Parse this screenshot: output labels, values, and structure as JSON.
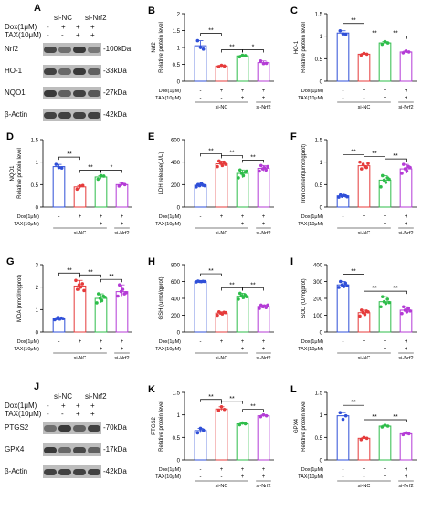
{
  "panel_letters": [
    "A",
    "B",
    "C",
    "D",
    "E",
    "F",
    "G",
    "H",
    "I",
    "J",
    "K",
    "L"
  ],
  "colors": {
    "siNC_ctrl": "#2f4fd8",
    "siNC_dox": "#e53b3b",
    "siNC_tax": "#2ebd4a",
    "siNrf2_tax": "#b43bd6"
  },
  "blots": [
    {
      "letter": "A",
      "treatments": [
        {
          "label": "Dox(1μM)",
          "signs": [
            "-",
            "+",
            "+",
            "+"
          ]
        },
        {
          "label": "TAX(10μM)",
          "signs": [
            "-",
            "-",
            "+",
            "+"
          ]
        }
      ],
      "groups": [
        {
          "label": "si-NC"
        },
        {
          "label": "si-Nrf2"
        }
      ],
      "rows": [
        {
          "name": "Nrf2",
          "kda": "-100kDa",
          "level": [
            0.75,
            0.5,
            0.85,
            0.45
          ]
        },
        {
          "name": "HO-1",
          "kda": "-33kDa",
          "level": [
            0.8,
            0.55,
            0.85,
            0.6
          ]
        },
        {
          "name": "NQO1",
          "kda": "-27kDa",
          "level": [
            0.85,
            0.6,
            0.8,
            0.65
          ]
        },
        {
          "name": "β-Actin",
          "kda": "-42kDa",
          "level": [
            0.8,
            0.8,
            0.8,
            0.8
          ]
        }
      ]
    },
    {
      "letter": "J",
      "treatments": [
        {
          "label": "Dox(1μM)",
          "signs": [
            "-",
            "+",
            "+",
            "+"
          ]
        },
        {
          "label": "TAX(10μM)",
          "signs": [
            "-",
            "-",
            "+",
            "+"
          ]
        }
      ],
      "groups": [
        {
          "label": "si-NC"
        },
        {
          "label": "si-Nrf2"
        }
      ],
      "rows": [
        {
          "name": "PTGS2",
          "kda": "-70kDa",
          "level": [
            0.5,
            0.85,
            0.6,
            0.8
          ]
        },
        {
          "name": "GPX4",
          "kda": "-17kDa",
          "level": [
            0.85,
            0.55,
            0.75,
            0.6
          ]
        },
        {
          "name": "β-Actin",
          "kda": "-42kDa",
          "level": [
            0.8,
            0.8,
            0.8,
            0.8
          ]
        }
      ]
    }
  ],
  "chart_data": [
    {
      "letter": "B",
      "type": "bar",
      "ylabel": "Nrf2\nRelative protein level",
      "ylim": [
        0,
        2.0
      ],
      "yticks": [
        0,
        0.5,
        1.0,
        1.5,
        2.0
      ],
      "values": [
        1.05,
        0.45,
        0.75,
        0.55
      ],
      "points": [
        [
          1.2,
          1.0,
          0.95
        ],
        [
          0.43,
          0.47,
          0.45
        ],
        [
          0.72,
          0.77,
          0.76
        ],
        [
          0.6,
          0.52,
          0.53
        ]
      ],
      "sig": [
        {
          "a": 0,
          "b": 1,
          "label": "**"
        },
        {
          "a": 1,
          "b": 2,
          "label": "**"
        },
        {
          "a": 2,
          "b": 3,
          "label": "*"
        }
      ],
      "dox": [
        "-",
        "+",
        "+",
        "+"
      ],
      "tax": [
        "-",
        "-",
        "+",
        "+"
      ],
      "groups": [
        "si-NC",
        "si-Nrf2"
      ]
    },
    {
      "letter": "C",
      "type": "bar",
      "ylabel": "HO-1\nRelative protein level",
      "ylim": [
        0,
        1.5
      ],
      "yticks": [
        0,
        0.5,
        1.0,
        1.5
      ],
      "values": [
        1.07,
        0.6,
        0.85,
        0.65
      ],
      "points": [
        [
          1.12,
          1.05,
          1.04
        ],
        [
          0.58,
          0.62,
          0.6
        ],
        [
          0.82,
          0.88,
          0.85
        ],
        [
          0.63,
          0.67,
          0.65
        ]
      ],
      "sig": [
        {
          "a": 0,
          "b": 1,
          "label": "**"
        },
        {
          "a": 1,
          "b": 2,
          "label": "**"
        },
        {
          "a": 2,
          "b": 3,
          "label": "**"
        }
      ],
      "dox": [
        "-",
        "+",
        "+",
        "+"
      ],
      "tax": [
        "-",
        "-",
        "+",
        "+"
      ],
      "groups": [
        "si-NC",
        "si-Nrf2"
      ]
    },
    {
      "letter": "D",
      "type": "bar",
      "ylabel": "NQO1\nRelative protein level",
      "ylim": [
        0,
        1.5
      ],
      "yticks": [
        0,
        0.5,
        1.0,
        1.5
      ],
      "values": [
        0.9,
        0.45,
        0.67,
        0.5
      ],
      "points": [
        [
          0.95,
          0.88,
          0.87
        ],
        [
          0.4,
          0.47,
          0.48
        ],
        [
          0.62,
          0.7,
          0.69
        ],
        [
          0.47,
          0.53,
          0.5
        ]
      ],
      "sig": [
        {
          "a": 0,
          "b": 1,
          "label": "**"
        },
        {
          "a": 1,
          "b": 2,
          "label": "**"
        },
        {
          "a": 2,
          "b": 3,
          "label": "*"
        }
      ],
      "dox": [
        "-",
        "+",
        "+",
        "+"
      ],
      "tax": [
        "-",
        "-",
        "+",
        "+"
      ],
      "groups": [
        "si-NC",
        "si-Nrf2"
      ]
    },
    {
      "letter": "E",
      "type": "bar",
      "ylabel": "LDH release(U/L)",
      "ylim": [
        0,
        600
      ],
      "yticks": [
        0,
        200,
        400,
        600
      ],
      "values": [
        195,
        385,
        300,
        345
      ],
      "points": [
        [
          180,
          200,
          190,
          210,
          195,
          190
        ],
        [
          360,
          410,
          390,
          370,
          400,
          380
        ],
        [
          260,
          330,
          300,
          280,
          310,
          320
        ],
        [
          320,
          370,
          340,
          350,
          330,
          360
        ]
      ],
      "sig": [
        {
          "a": 0,
          "b": 1,
          "label": "**"
        },
        {
          "a": 1,
          "b": 2,
          "label": "**"
        },
        {
          "a": 2,
          "b": 3,
          "label": "**"
        }
      ],
      "dox": [
        "-",
        "+",
        "+",
        "+"
      ],
      "tax": [
        "-",
        "-",
        "+",
        "+"
      ],
      "groups": [
        "si-NC",
        "si-Nrf2"
      ]
    },
    {
      "letter": "F",
      "type": "bar",
      "ylabel": "Iron content(umol/gprot)",
      "ylim": [
        0,
        1.5
      ],
      "yticks": [
        0,
        0.5,
        1.0,
        1.5
      ],
      "values": [
        0.25,
        0.92,
        0.6,
        0.85
      ],
      "points": [
        [
          0.22,
          0.27,
          0.24,
          0.26,
          0.25,
          0.23
        ],
        [
          1.0,
          0.85,
          0.95,
          0.9,
          0.88,
          0.97
        ],
        [
          0.45,
          0.7,
          0.6,
          0.55,
          0.65,
          0.62
        ],
        [
          0.75,
          0.95,
          0.85,
          0.8,
          0.9,
          0.88
        ]
      ],
      "sig": [
        {
          "a": 0,
          "b": 1,
          "label": "**"
        },
        {
          "a": 1,
          "b": 2,
          "label": "**"
        },
        {
          "a": 2,
          "b": 3,
          "label": "**"
        }
      ],
      "dox": [
        "-",
        "+",
        "+",
        "+"
      ],
      "tax": [
        "-",
        "-",
        "+",
        "+"
      ],
      "groups": [
        "si-NC",
        "si-Nrf2"
      ]
    },
    {
      "letter": "G",
      "type": "bar",
      "ylabel": "MDA (nmol/mgprot)",
      "ylim": [
        0,
        3
      ],
      "yticks": [
        0,
        1,
        2,
        3
      ],
      "values": [
        0.6,
        2.05,
        1.5,
        1.8
      ],
      "points": [
        [
          0.55,
          0.6,
          0.65,
          0.58,
          0.62,
          0.6
        ],
        [
          2.3,
          1.9,
          2.1,
          2.0,
          2.15,
          1.85
        ],
        [
          1.3,
          1.7,
          1.5,
          1.4,
          1.6,
          1.55
        ],
        [
          1.6,
          2.1,
          1.8,
          1.9,
          1.7,
          1.75
        ]
      ],
      "sig": [
        {
          "a": 0,
          "b": 1,
          "label": "**"
        },
        {
          "a": 1,
          "b": 2,
          "label": "**"
        },
        {
          "a": 2,
          "b": 3,
          "label": "**"
        }
      ],
      "dox": [
        "-",
        "+",
        "+",
        "+"
      ],
      "tax": [
        "-",
        "-",
        "+",
        "+"
      ],
      "groups": [
        "si-NC",
        "si-Nrf2"
      ]
    },
    {
      "letter": "H",
      "type": "bar",
      "ylabel": "GSH (umol/gprot)",
      "ylim": [
        0,
        800
      ],
      "yticks": [
        0,
        200,
        400,
        600,
        800
      ],
      "values": [
        600,
        225,
        425,
        305
      ],
      "points": [
        [
          595,
          605,
          600,
          598,
          602,
          600
        ],
        [
          200,
          240,
          225,
          215,
          235,
          230
        ],
        [
          390,
          460,
          430,
          410,
          440,
          420
        ],
        [
          280,
          320,
          300,
          310,
          290,
          320
        ]
      ],
      "sig": [
        {
          "a": 0,
          "b": 1,
          "label": "**"
        },
        {
          "a": 1,
          "b": 2,
          "label": "**"
        },
        {
          "a": 2,
          "b": 3,
          "label": "**"
        }
      ],
      "dox": [
        "-",
        "+",
        "+",
        "+"
      ],
      "tax": [
        "-",
        "-",
        "+",
        "+"
      ],
      "groups": [
        "si-NC",
        "si-Nrf2"
      ]
    },
    {
      "letter": "I",
      "type": "bar",
      "ylabel": "SOD (U/mgprot)",
      "ylim": [
        0,
        400
      ],
      "yticks": [
        0,
        100,
        200,
        300,
        400
      ],
      "values": [
        280,
        115,
        180,
        130
      ],
      "points": [
        [
          265,
          300,
          280,
          270,
          290,
          275
        ],
        [
          95,
          130,
          115,
          105,
          125,
          120
        ],
        [
          150,
          210,
          180,
          170,
          195,
          175
        ],
        [
          110,
          150,
          130,
          120,
          140,
          125
        ]
      ],
      "sig": [
        {
          "a": 0,
          "b": 1,
          "label": "**"
        },
        {
          "a": 1,
          "b": 2,
          "label": "**"
        },
        {
          "a": 2,
          "b": 3,
          "label": "**"
        }
      ],
      "dox": [
        "-",
        "+",
        "+",
        "+"
      ],
      "tax": [
        "-",
        "-",
        "+",
        "+"
      ],
      "groups": [
        "si-NC",
        "si-Nrf2"
      ]
    },
    {
      "letter": "K",
      "type": "bar",
      "ylabel": "PTGS2\nRelative protein level",
      "ylim": [
        0,
        1.5
      ],
      "yticks": [
        0,
        0.5,
        1.0,
        1.5
      ],
      "values": [
        0.65,
        1.13,
        0.8,
        0.98
      ],
      "points": [
        [
          0.6,
          0.7,
          0.66
        ],
        [
          1.1,
          1.18,
          1.12
        ],
        [
          0.78,
          0.82,
          0.8
        ],
        [
          0.96,
          1.0,
          0.98
        ]
      ],
      "sig": [
        {
          "a": 0,
          "b": 1,
          "label": "**"
        },
        {
          "a": 1,
          "b": 2,
          "label": "**"
        },
        {
          "a": 2,
          "b": 3,
          "label": "**"
        }
      ],
      "dox": [
        "-",
        "+",
        "+",
        "+"
      ],
      "tax": [
        "-",
        "-",
        "+",
        "+"
      ],
      "groups": [
        "si-NC",
        "si-Nrf2"
      ]
    },
    {
      "letter": "L",
      "type": "bar",
      "ylabel": "GPX4\nRelative protein level",
      "ylim": [
        0,
        1.5
      ],
      "yticks": [
        0,
        0.5,
        1.0,
        1.5
      ],
      "values": [
        0.98,
        0.48,
        0.75,
        0.58
      ],
      "points": [
        [
          1.05,
          0.9,
          0.98
        ],
        [
          0.45,
          0.5,
          0.48
        ],
        [
          0.73,
          0.77,
          0.75
        ],
        [
          0.56,
          0.6,
          0.58
        ]
      ],
      "sig": [
        {
          "a": 0,
          "b": 1,
          "label": "**"
        },
        {
          "a": 1,
          "b": 2,
          "label": "**"
        },
        {
          "a": 2,
          "b": 3,
          "label": "**"
        }
      ],
      "dox": [
        "-",
        "+",
        "+",
        "+"
      ],
      "tax": [
        "-",
        "-",
        "+",
        "+"
      ],
      "groups": [
        "si-NC",
        "si-Nrf2"
      ]
    }
  ]
}
